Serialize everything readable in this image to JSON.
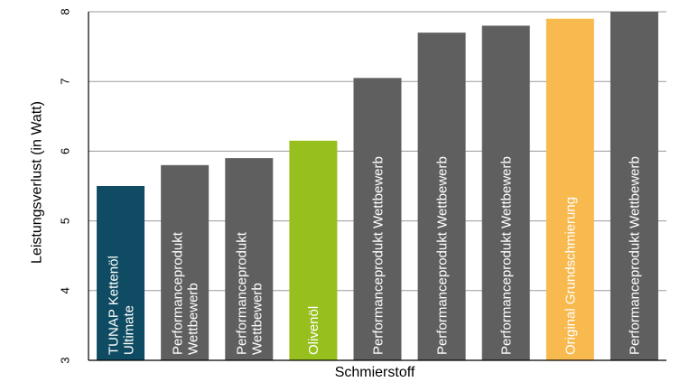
{
  "chart_data": {
    "type": "bar",
    "title": "",
    "xlabel": "Schmierstoff",
    "ylabel": "Leistungsverlust (in Watt)",
    "ylim": [
      3,
      8
    ],
    "yticks": [
      "3",
      "4",
      "5",
      "6",
      "7",
      "8"
    ],
    "grid": true,
    "bars": [
      {
        "label": [
          "TUNAP Kettenöl",
          "Ultimate"
        ],
        "value": 5.5,
        "color": "#0f4c63"
      },
      {
        "label": [
          "Performanceprodukt",
          "Wettbewerb"
        ],
        "value": 5.8,
        "color": "#5f5f5f"
      },
      {
        "label": [
          "Performanceprodukt",
          "Wettbewerb"
        ],
        "value": 5.9,
        "color": "#5f5f5f"
      },
      {
        "label": [
          "Olivenöl"
        ],
        "value": 6.15,
        "color": "#97bf1e"
      },
      {
        "label": [
          "Performanceprodukt Wettbewerb"
        ],
        "value": 7.05,
        "color": "#5f5f5f"
      },
      {
        "label": [
          "Performanceprodukt Wettbewerb"
        ],
        "value": 7.7,
        "color": "#5f5f5f"
      },
      {
        "label": [
          "Performanceprodukt Wettbewerb"
        ],
        "value": 7.8,
        "color": "#5f5f5f"
      },
      {
        "label": [
          "Original Grundschmierung"
        ],
        "value": 7.9,
        "color": "#f8b94e"
      },
      {
        "label": [
          "Performanceprodukt Wettbewerb"
        ],
        "value": 8.0,
        "color": "#5f5f5f"
      }
    ]
  }
}
